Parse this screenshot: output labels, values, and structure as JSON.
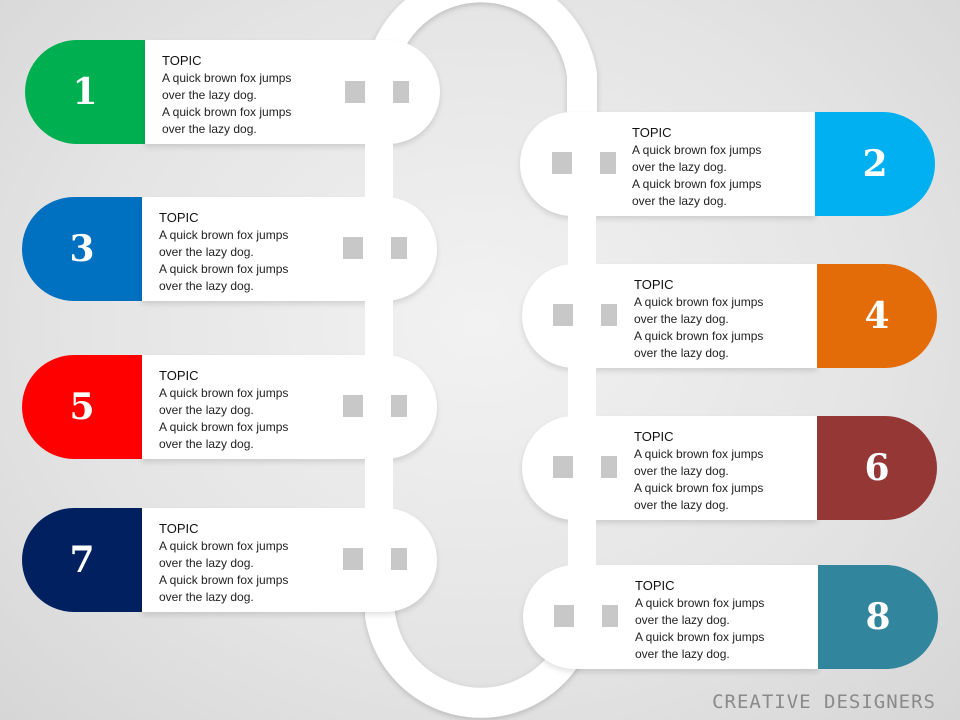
{
  "title_text": "CREATIVE DESIGNERS",
  "steps": [
    {
      "number": "1",
      "color": "#00b050",
      "topic": "TOPIC",
      "lines": [
        "A quick brown fox jumps",
        "over the lazy dog.",
        "A quick brown fox jumps",
        "over the lazy dog."
      ]
    },
    {
      "number": "2",
      "color": "#00b0f0",
      "topic": "TOPIC",
      "lines": [
        "A quick brown fox jumps",
        "over the lazy dog.",
        "A quick brown fox jumps",
        "over the lazy dog."
      ]
    },
    {
      "number": "3",
      "color": "#0070c0",
      "topic": "TOPIC",
      "lines": [
        "A quick brown fox jumps",
        "over the lazy dog.",
        "A quick brown fox jumps",
        "over the lazy dog."
      ]
    },
    {
      "number": "4",
      "color": "#e36c09",
      "topic": "TOPIC",
      "lines": [
        "A quick brown fox jumps",
        "over the lazy dog.",
        "A quick brown fox jumps",
        "over the lazy dog."
      ]
    },
    {
      "number": "5",
      "color": "#ff0000",
      "topic": "TOPIC",
      "lines": [
        "A quick brown fox jumps",
        "over the lazy dog.",
        "A quick brown fox jumps",
        "over the lazy dog."
      ]
    },
    {
      "number": "6",
      "color": "#953735",
      "topic": "TOPIC",
      "lines": [
        "A quick brown fox jumps",
        "over the lazy dog.",
        "A quick brown fox jumps",
        "over the lazy dog."
      ]
    },
    {
      "number": "7",
      "color": "#002060",
      "topic": "TOPIC",
      "lines": [
        "A quick brown fox jumps",
        "over the lazy dog.",
        "A quick brown fox jumps",
        "over the lazy dog."
      ]
    },
    {
      "number": "8",
      "color": "#31859c",
      "topic": "TOPIC",
      "lines": [
        "A quick brown fox jumps",
        "over the lazy dog.",
        "A quick brown fox jumps",
        "over the lazy dog."
      ]
    }
  ]
}
